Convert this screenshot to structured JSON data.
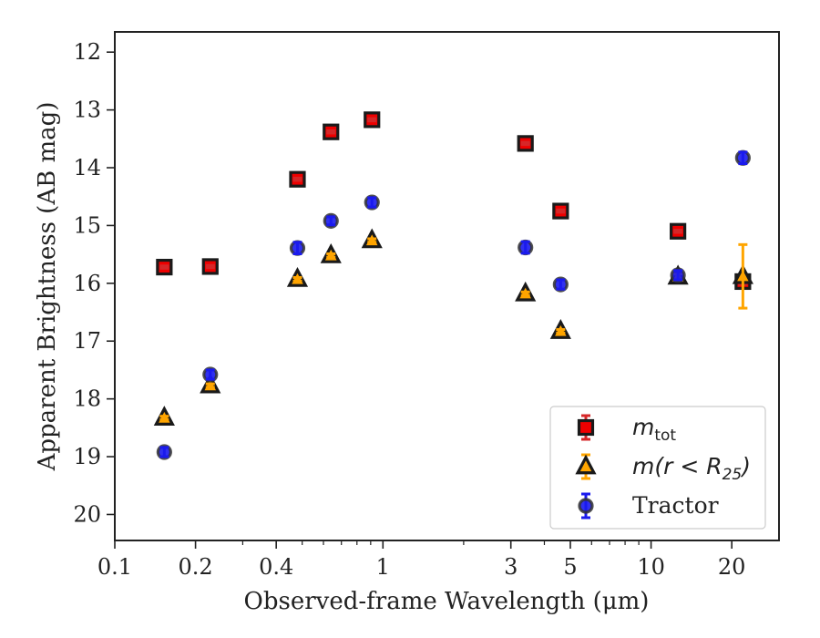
{
  "chart_data": {
    "type": "scatter",
    "title": "",
    "xlabel": "Observed-frame Wavelength (μm)",
    "ylabel": "Apparent Brightness (AB mag)",
    "xscale": "log",
    "xlim": [
      0.1,
      30
    ],
    "ylim": [
      20.45,
      11.65
    ],
    "y_inverted": true,
    "grid": false,
    "legend_position": "lower-right",
    "x_ticks": [
      {
        "value": 0.1,
        "label": "0.1"
      },
      {
        "value": 0.2,
        "label": "0.2"
      },
      {
        "value": 0.4,
        "label": "0.4"
      },
      {
        "value": 1,
        "label": "1"
      },
      {
        "value": 3,
        "label": "3"
      },
      {
        "value": 5,
        "label": "5"
      },
      {
        "value": 10,
        "label": "10"
      },
      {
        "value": 20,
        "label": "20"
      }
    ],
    "y_ticks": [
      {
        "value": 12,
        "label": "12"
      },
      {
        "value": 13,
        "label": "13"
      },
      {
        "value": 14,
        "label": "14"
      },
      {
        "value": 15,
        "label": "15"
      },
      {
        "value": 16,
        "label": "16"
      },
      {
        "value": 17,
        "label": "17"
      },
      {
        "value": 18,
        "label": "18"
      },
      {
        "value": 19,
        "label": "19"
      },
      {
        "value": 20,
        "label": "20"
      }
    ],
    "series": [
      {
        "name": "m_tot",
        "legend_main": "m",
        "legend_sub": "tot",
        "marker": "square",
        "fill": "#ee0000",
        "errorbar_color": "#d62728",
        "x": [
          0.153,
          0.227,
          0.48,
          0.64,
          0.91,
          3.4,
          4.6,
          12.6,
          22.0
        ],
        "y": [
          15.72,
          15.71,
          14.2,
          13.38,
          13.17,
          13.58,
          14.75,
          15.1,
          15.97
        ],
        "yerr": [
          0.02,
          0.02,
          0.02,
          0.02,
          0.02,
          0.02,
          0.02,
          0.02,
          0.05
        ]
      },
      {
        "name": "m(r<R25)",
        "legend_main": "m(r < R",
        "legend_sub": "25",
        "legend_tail": ")",
        "marker": "triangle",
        "fill": "#ffa500",
        "errorbar_color": "#ffa500",
        "x": [
          0.153,
          0.227,
          0.48,
          0.64,
          0.91,
          3.4,
          4.6,
          12.6,
          22.0
        ],
        "y": [
          18.33,
          17.77,
          15.93,
          15.52,
          15.26,
          16.18,
          16.83,
          15.89,
          15.88
        ],
        "yerr": [
          0.03,
          0.03,
          0.03,
          0.03,
          0.03,
          0.03,
          0.03,
          0.05,
          0.55
        ]
      },
      {
        "name": "Tractor",
        "legend_main": "Tractor",
        "marker": "circle",
        "fill": "#1a1aee",
        "errorbar_color": "#1a1aee",
        "x": [
          0.153,
          0.227,
          0.48,
          0.64,
          0.91,
          3.4,
          4.6,
          12.6,
          22.0
        ],
        "y": [
          18.92,
          17.58,
          15.39,
          14.92,
          14.6,
          15.38,
          16.02,
          15.86,
          13.83
        ],
        "yerr": [
          0.08,
          0.08,
          0.1,
          0.07,
          0.08,
          0.1,
          0.08,
          0.08,
          0.1
        ]
      }
    ]
  }
}
